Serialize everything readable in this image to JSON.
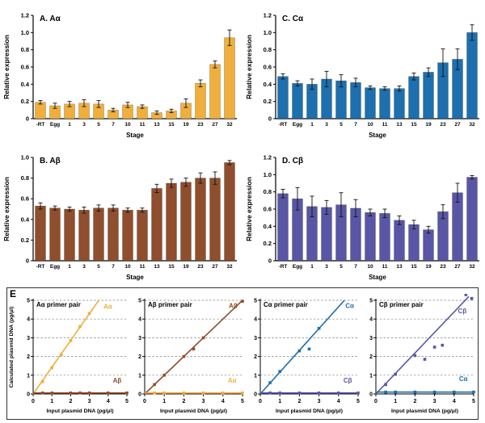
{
  "figure": {
    "panelE_label": "E"
  },
  "colors": {
    "A_alpha": "#F0AF3C",
    "A_beta": "#8F4E2D",
    "C_alpha": "#1E6FAD",
    "C_beta": "#5956A5",
    "error_bar": "#111111",
    "axis": "#000000",
    "grid": "#808080"
  },
  "chart_data": [
    {
      "type": "bar",
      "panel": "A",
      "title": "A.  Aα",
      "color_key": "A_alpha",
      "categories": [
        "-RT",
        "Egg",
        "1",
        "3",
        "5",
        "7",
        "10",
        "11",
        "13",
        "15",
        "19",
        "23",
        "27",
        "32"
      ],
      "values": [
        0.19,
        0.15,
        0.17,
        0.18,
        0.17,
        0.1,
        0.16,
        0.14,
        0.07,
        0.09,
        0.18,
        0.41,
        0.63,
        0.94
      ],
      "errors": [
        0.02,
        0.03,
        0.03,
        0.04,
        0.04,
        0.02,
        0.03,
        0.02,
        0.02,
        0.02,
        0.05,
        0.04,
        0.04,
        0.09
      ],
      "xlabel": "Stage",
      "ylabel": "Relative expression",
      "ylim": [
        0,
        1.2
      ],
      "ytick_step": 0.2
    },
    {
      "type": "bar",
      "panel": "B",
      "title": "B.  Aβ",
      "color_key": "A_beta",
      "categories": [
        "-RT",
        "Egg",
        "1",
        "3",
        "5",
        "7",
        "10",
        "11",
        "13",
        "15",
        "19",
        "23",
        "27",
        "32"
      ],
      "values": [
        0.53,
        0.51,
        0.5,
        0.49,
        0.51,
        0.51,
        0.49,
        0.49,
        0.7,
        0.75,
        0.76,
        0.8,
        0.8,
        0.95
      ],
      "errors": [
        0.03,
        0.02,
        0.02,
        0.03,
        0.03,
        0.03,
        0.02,
        0.02,
        0.04,
        0.04,
        0.04,
        0.05,
        0.06,
        0.02
      ],
      "xlabel": "Stage",
      "ylabel": "Relative expression",
      "ylim": [
        0,
        1.0
      ],
      "ytick_step": 0.2
    },
    {
      "type": "bar",
      "panel": "C",
      "title": "C.  Cα",
      "color_key": "C_alpha",
      "categories": [
        "-RT",
        "Egg",
        "1",
        "3",
        "5",
        "7",
        "10",
        "11",
        "13",
        "15",
        "19",
        "23",
        "27",
        "32"
      ],
      "values": [
        0.49,
        0.41,
        0.4,
        0.46,
        0.44,
        0.42,
        0.36,
        0.35,
        0.35,
        0.49,
        0.54,
        0.65,
        0.69,
        1.0
      ],
      "errors": [
        0.03,
        0.03,
        0.06,
        0.09,
        0.07,
        0.05,
        0.02,
        0.02,
        0.03,
        0.04,
        0.05,
        0.16,
        0.12,
        0.09
      ],
      "xlabel": "Stage",
      "ylabel": "Relative expression",
      "ylim": [
        0,
        1.2
      ],
      "ytick_step": 0.2
    },
    {
      "type": "bar",
      "panel": "D",
      "title": "D.  Cβ",
      "color_key": "C_beta",
      "categories": [
        "-RT",
        "Egg",
        "1",
        "3",
        "5",
        "7",
        "10",
        "11",
        "13",
        "15",
        "19",
        "23",
        "27",
        "32"
      ],
      "values": [
        0.78,
        0.72,
        0.63,
        0.62,
        0.65,
        0.61,
        0.56,
        0.55,
        0.47,
        0.42,
        0.36,
        0.57,
        0.79,
        0.97
      ],
      "errors": [
        0.05,
        0.13,
        0.12,
        0.08,
        0.14,
        0.1,
        0.04,
        0.05,
        0.05,
        0.05,
        0.04,
        0.08,
        0.11,
        0.02
      ],
      "xlabel": "Stage",
      "ylabel": "Relative expression",
      "ylim": [
        0,
        1.2
      ],
      "ytick_step": 0.2
    },
    {
      "type": "scatter",
      "panel": "E1",
      "title": "Aα primer pair",
      "xlabel": "Input plasmid DNA (pg/µl)",
      "ylabel": "Calculated plasmid DNA (pg/µl)",
      "xlim": [
        0,
        5
      ],
      "ylim": [
        0,
        5
      ],
      "grid": "dashed-horizontal",
      "series": [
        {
          "name": "Aα",
          "color_key": "A_alpha",
          "line": [
            [
              0,
              0
            ],
            [
              3.5,
              5
            ]
          ],
          "points": [
            [
              0.5,
              0.65
            ],
            [
              1,
              1.4
            ],
            [
              1.5,
              2.1
            ],
            [
              2,
              2.85
            ],
            [
              2.5,
              3.6
            ],
            [
              3,
              4.3
            ]
          ],
          "label_pos": [
            3.75,
            4.55
          ]
        },
        {
          "name": "Aβ",
          "color_key": "A_beta",
          "line": [
            [
              0,
              0.05
            ],
            [
              5,
              0.05
            ]
          ],
          "points": [
            [
              0.5,
              0.05
            ],
            [
              1,
              0.05
            ],
            [
              2,
              0.05
            ],
            [
              2.5,
              0.05
            ],
            [
              3,
              0.05
            ],
            [
              4,
              0.05
            ],
            [
              5,
              0.05
            ]
          ],
          "label_pos": [
            4.25,
            0.6
          ]
        }
      ]
    },
    {
      "type": "scatter",
      "panel": "E2",
      "title": "Aβ primer pair",
      "xlabel": "Input plasmid DNA (pg/µl)",
      "ylabel": "",
      "xlim": [
        0,
        5
      ],
      "ylim": [
        0,
        5
      ],
      "grid": "dashed-horizontal",
      "series": [
        {
          "name": "Aβ",
          "color_key": "A_beta",
          "line": [
            [
              0,
              0
            ],
            [
              5,
              5
            ]
          ],
          "points": [
            [
              0.5,
              0.5
            ],
            [
              1,
              1.0
            ],
            [
              2,
              2.0
            ],
            [
              2.5,
              2.4
            ],
            [
              3,
              3.0
            ],
            [
              5,
              4.95
            ]
          ],
          "label_pos": [
            4.3,
            4.6
          ]
        },
        {
          "name": "Aα",
          "color_key": "A_alpha",
          "line": [
            [
              0,
              0.05
            ],
            [
              5,
              0.05
            ]
          ],
          "points": [
            [
              0.5,
              0.05
            ],
            [
              1,
              0.05
            ],
            [
              2,
              0.05
            ],
            [
              3,
              0.05
            ],
            [
              4,
              0.05
            ],
            [
              5,
              0.05
            ]
          ],
          "label_pos": [
            4.25,
            0.6
          ]
        }
      ]
    },
    {
      "type": "scatter",
      "panel": "E3",
      "title": "Cα primer pair",
      "xlabel": "Input plasmid DNA (pg/µl)",
      "ylabel": "",
      "xlim": [
        0,
        5
      ],
      "ylim": [
        0,
        5
      ],
      "grid": "dashed-horizontal",
      "series": [
        {
          "name": "Cα",
          "color_key": "C_alpha",
          "line": [
            [
              0,
              0
            ],
            [
              4.3,
              5
            ]
          ],
          "points": [
            [
              0.5,
              0.6
            ],
            [
              1,
              1.2
            ],
            [
              2,
              2.3
            ],
            [
              2.5,
              2.4
            ],
            [
              3,
              3.5
            ]
          ],
          "label_pos": [
            4.35,
            4.6
          ]
        },
        {
          "name": "Cβ",
          "color_key": "C_beta",
          "line": [
            [
              0,
              0.05
            ],
            [
              5,
              0.05
            ]
          ],
          "points": [
            [
              0.5,
              0.05
            ],
            [
              1,
              0.05
            ],
            [
              2,
              0.05
            ],
            [
              3,
              0.05
            ],
            [
              4,
              0.05
            ],
            [
              5,
              0.05
            ]
          ],
          "label_pos": [
            4.25,
            0.6
          ]
        }
      ]
    },
    {
      "type": "scatter",
      "panel": "E4",
      "title": "Cβ primer pair",
      "xlabel": "Input plasmid DNA (pg/µl)",
      "ylabel": "",
      "xlim": [
        0,
        5
      ],
      "ylim": [
        0,
        5
      ],
      "grid": "dashed-horizontal",
      "series": [
        {
          "name": "Cβ",
          "color_key": "C_beta",
          "line": [
            [
              0,
              0
            ],
            [
              4.75,
              5.2
            ]
          ],
          "points": [
            [
              0.5,
              0.5
            ],
            [
              1,
              1.05
            ],
            [
              2,
              2.05
            ],
            [
              2.5,
              1.85
            ],
            [
              3,
              2.5
            ],
            [
              3.4,
              2.6
            ],
            [
              4.6,
              5.3
            ],
            [
              4.9,
              5.1
            ]
          ],
          "label_pos": [
            4.2,
            4.3
          ]
        },
        {
          "name": "Cα",
          "color_key": "C_alpha",
          "line": [
            [
              0,
              0.1
            ],
            [
              5,
              0.1
            ]
          ],
          "points": [
            [
              0.5,
              0.1
            ],
            [
              1,
              0.1
            ],
            [
              2,
              0.1
            ],
            [
              3,
              0.1
            ],
            [
              4,
              0.1
            ],
            [
              5,
              0.1
            ]
          ],
          "label_pos": [
            4.25,
            0.7
          ]
        }
      ]
    }
  ]
}
